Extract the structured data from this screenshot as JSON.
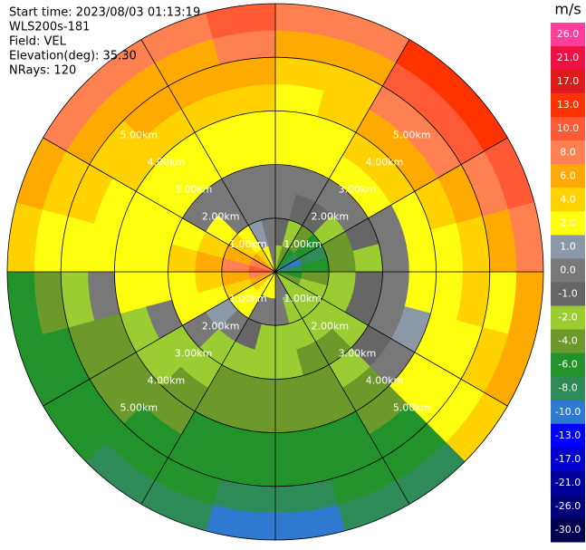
{
  "chart_data": {
    "type": "ppi",
    "header": [
      "Start time: 2023/08/03 01:13:19",
      "WLS200s-181",
      "Field: VEL",
      "Elevation(deg): 35.30",
      "NRays: 120"
    ],
    "azimuth_edges": [
      0,
      15,
      30,
      45,
      60,
      75,
      90,
      105,
      120,
      135,
      150,
      165,
      180,
      195,
      210,
      225,
      240,
      255,
      270,
      285,
      300,
      315,
      330,
      345,
      360
    ],
    "range_edges": [
      0,
      0.5,
      1,
      1.5,
      2,
      2.5,
      3,
      3.5,
      4,
      4.5,
      5
    ],
    "rlim": [
      0,
      5
    ],
    "range_rings": [
      {
        "value": 1,
        "label": "1.00km"
      },
      {
        "value": 2,
        "label": "2.00km"
      },
      {
        "value": 3,
        "label": "3.00km"
      },
      {
        "value": 4,
        "label": "4.00km"
      },
      {
        "value": 5,
        "label": "5.00km"
      }
    ],
    "spokes": [
      0,
      30,
      60,
      90,
      120,
      150
    ],
    "values": [
      [
        -2,
        -1,
        0,
        0,
        2,
        2,
        2,
        4,
        6,
        8
      ],
      [
        -4,
        -2,
        -1,
        0,
        2,
        2,
        4,
        4,
        6,
        8
      ],
      [
        -6,
        -4,
        -1,
        0,
        2,
        4,
        6,
        8,
        10,
        13
      ],
      [
        -8,
        -6,
        -2,
        0,
        2,
        4,
        6,
        8,
        10,
        13
      ],
      [
        -10,
        -8,
        -4,
        -1,
        0,
        2,
        4,
        6,
        8,
        10
      ],
      [
        -8,
        -6,
        -4,
        -2,
        0,
        2,
        2,
        4,
        6,
        8
      ],
      [
        -6,
        -4,
        -2,
        -1,
        0,
        2,
        2,
        4,
        2,
        6
      ],
      [
        -4,
        -2,
        -2,
        -1,
        0,
        1,
        2,
        2,
        4,
        6
      ],
      [
        -2,
        -2,
        -2,
        -2,
        -1,
        0,
        2,
        2,
        2,
        4
      ],
      [
        -2,
        -2,
        -2,
        -4,
        -2,
        -4,
        -4,
        -6,
        -6,
        -8
      ],
      [
        0,
        -2,
        -2,
        -4,
        -4,
        -4,
        -6,
        -6,
        -6,
        -8
      ],
      [
        0,
        0,
        -2,
        -2,
        -4,
        -4,
        -6,
        -6,
        -8,
        -10
      ],
      [
        2,
        0,
        -2,
        -2,
        -4,
        -4,
        -6,
        -6,
        -8,
        -10
      ],
      [
        2,
        0,
        -1,
        -2,
        -4,
        -4,
        -6,
        -6,
        -6,
        -8
      ],
      [
        2,
        2,
        0,
        -2,
        -2,
        -4,
        -4,
        -6,
        -6,
        -8
      ],
      [
        4,
        2,
        1,
        0,
        -2,
        -2,
        -4,
        -4,
        -6,
        -6
      ],
      [
        6,
        4,
        2,
        2,
        0,
        -2,
        -4,
        -4,
        -6,
        -6
      ],
      [
        8,
        6,
        4,
        2,
        2,
        2,
        0,
        -2,
        -4,
        -6
      ],
      [
        10,
        8,
        6,
        4,
        2,
        2,
        2,
        2,
        2,
        4
      ],
      [
        8,
        6,
        4,
        2,
        2,
        2,
        2,
        4,
        4,
        6
      ],
      [
        6,
        4,
        2,
        0,
        2,
        2,
        4,
        4,
        6,
        8
      ],
      [
        4,
        2,
        0,
        0,
        2,
        2,
        4,
        6,
        6,
        8
      ],
      [
        2,
        1,
        0,
        0,
        2,
        2,
        4,
        6,
        6,
        8
      ],
      [
        0,
        0,
        0,
        0,
        2,
        2,
        4,
        6,
        8,
        10
      ]
    ],
    "colorbar": {
      "label": "m/s",
      "ticks": [
        {
          "value": 26,
          "label": "26.0"
        },
        {
          "value": 21,
          "label": "21.0"
        },
        {
          "value": 17,
          "label": "17.0"
        },
        {
          "value": 13,
          "label": "13.0"
        },
        {
          "value": 10,
          "label": "10.0"
        },
        {
          "value": 8,
          "label": "8.0"
        },
        {
          "value": 6,
          "label": "6.0"
        },
        {
          "value": 4,
          "label": "4.0"
        },
        {
          "value": 2,
          "label": "2.0"
        },
        {
          "value": 1,
          "label": "1.0"
        },
        {
          "value": 0,
          "label": "0.0"
        },
        {
          "value": -1,
          "label": "-1.0"
        },
        {
          "value": -2,
          "label": "-2.0"
        },
        {
          "value": -4,
          "label": "-4.0"
        },
        {
          "value": -6,
          "label": "-6.0"
        },
        {
          "value": -8,
          "label": "-8.0"
        },
        {
          "value": -10,
          "label": "-10.0"
        },
        {
          "value": -13,
          "label": "-13.0"
        },
        {
          "value": -17,
          "label": "-17.0"
        },
        {
          "value": -21,
          "label": "-21.0"
        },
        {
          "value": -26,
          "label": "-26.0"
        },
        {
          "value": -30,
          "label": "-30.0"
        }
      ],
      "colors": [
        "#ff3d9a",
        "#ee1144",
        "#dd1a1a",
        "#ff3300",
        "#ff5a36",
        "#ff8050",
        "#ffaa00",
        "#ffd200",
        "#ffff10",
        "#8a98a8",
        "#787878",
        "#666666",
        "#9acd32",
        "#6b9a2a",
        "#22922a",
        "#2e8b57",
        "#2f7ad0",
        "#0000ff",
        "#0000cc",
        "#00009c",
        "#000078",
        "#000050"
      ]
    }
  }
}
